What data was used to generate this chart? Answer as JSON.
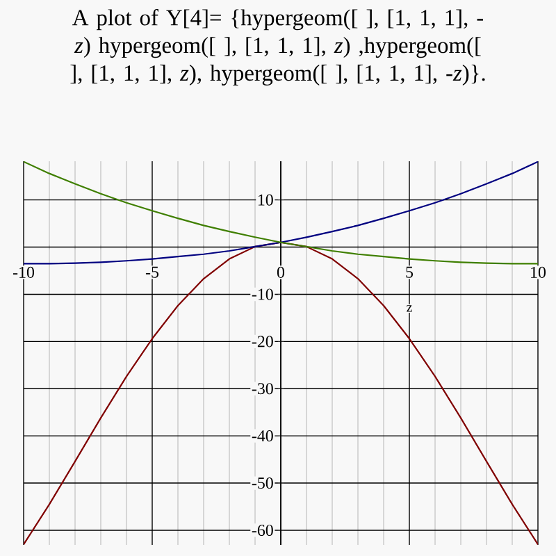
{
  "chart_data": {
    "type": "line",
    "title": "A plot of Y[4]= {hypergeom([ ], [1, 1, 1], -*z*) hypergeom([ ], [1, 1, 1], *z*) ,hypergeom([ ], [1, 1, 1], *z*), hypergeom([ ], [1, 1, 1], -*z*)}.",
    "xlabel": "z",
    "x": [
      -10,
      -9,
      -8,
      -7,
      -6,
      -5,
      -4,
      -3,
      -2,
      -1,
      0,
      1,
      2,
      3,
      4,
      5,
      6,
      7,
      8,
      9,
      10
    ],
    "series": [
      {
        "color": "#800000",
        "values": [
          -63.0,
          -54.5,
          -45.4,
          -36.2,
          -27.4,
          -19.4,
          -12.4,
          -6.7,
          -2.5,
          0.1,
          1,
          0.1,
          -2.5,
          -6.7,
          -12.4,
          -19.4,
          -27.4,
          -36.2,
          -45.4,
          -54.5,
          -63.0
        ]
      },
      {
        "color": "#000080",
        "values": [
          -3.5,
          -3.5,
          -3.4,
          -3.2,
          -2.9,
          -2.5,
          -2.0,
          -1.5,
          -0.8,
          0.1,
          1,
          2.1,
          3.3,
          4.6,
          6.1,
          7.7,
          9.4,
          11.3,
          13.4,
          15.6,
          18.1
        ]
      },
      {
        "color": "#3f7f00",
        "values": [
          18.1,
          15.6,
          13.4,
          11.3,
          9.4,
          7.7,
          6.1,
          4.6,
          3.3,
          2.1,
          1,
          0.1,
          -0.8,
          -1.5,
          -2.0,
          -2.5,
          -2.9,
          -3.2,
          -3.4,
          -3.5,
          -3.5
        ]
      }
    ],
    "xlim": [
      -10,
      10
    ],
    "ylim": [
      -63.1,
      18.2
    ],
    "xticks": [
      -10,
      -5,
      0,
      5,
      10
    ],
    "yticks": [
      -60,
      -50,
      -40,
      -30,
      -20,
      -10,
      10
    ],
    "grid": true
  }
}
